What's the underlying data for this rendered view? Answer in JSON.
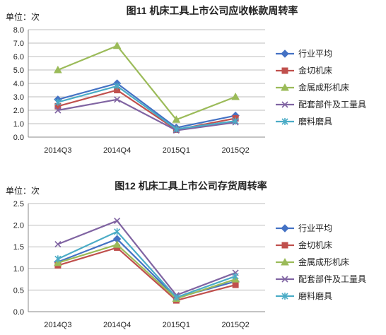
{
  "chart_data": [
    {
      "type": "line",
      "title": "图11 机床工具上市公司应收帐款周转率",
      "unit_label": "单位：次",
      "categories": [
        "2014Q3",
        "2014Q4",
        "2015Q1",
        "2015Q2"
      ],
      "ylim": [
        0,
        8
      ],
      "yticks": [
        "0.0",
        "1.0",
        "2.0",
        "3.0",
        "4.0",
        "5.0",
        "6.0",
        "7.0",
        "8.0"
      ],
      "grid": true,
      "legend_position": "right",
      "series": [
        {
          "name": "行业平均",
          "color": "#4472C4",
          "marker": "diamond",
          "values": [
            2.8,
            4.0,
            0.7,
            1.6
          ]
        },
        {
          "name": "金切机床",
          "color": "#C0504D",
          "marker": "square",
          "values": [
            2.3,
            3.5,
            0.55,
            1.4
          ]
        },
        {
          "name": "金属成形机床",
          "color": "#9BBB59",
          "marker": "triangle",
          "values": [
            5.0,
            6.8,
            1.3,
            3.0
          ]
        },
        {
          "name": "配套部件及工量具",
          "color": "#8064A2",
          "marker": "x",
          "values": [
            2.0,
            2.8,
            0.5,
            1.1
          ]
        },
        {
          "name": "磨料磨具",
          "color": "#4BACC6",
          "marker": "star",
          "values": [
            2.6,
            3.8,
            0.6,
            1.2
          ]
        }
      ]
    },
    {
      "type": "line",
      "title": "图12 机床工具上市公司存货周转率",
      "unit_label": "单位：次",
      "categories": [
        "2014Q3",
        "2014Q4",
        "2015Q1",
        "2015Q2"
      ],
      "ylim": [
        0,
        2.5
      ],
      "yticks": [
        "0.0",
        "0.5",
        "1.0",
        "1.5",
        "2.0",
        "2.5"
      ],
      "grid": true,
      "legend_position": "right",
      "series": [
        {
          "name": "行业平均",
          "color": "#4472C4",
          "marker": "diamond",
          "values": [
            1.15,
            1.68,
            0.32,
            0.7
          ]
        },
        {
          "name": "金切机床",
          "color": "#C0504D",
          "marker": "square",
          "values": [
            1.07,
            1.48,
            0.26,
            0.62
          ]
        },
        {
          "name": "金属成形机床",
          "color": "#9BBB59",
          "marker": "triangle",
          "values": [
            1.13,
            1.55,
            0.3,
            0.75
          ]
        },
        {
          "name": "配套部件及工量具",
          "color": "#8064A2",
          "marker": "x",
          "values": [
            1.56,
            2.1,
            0.38,
            0.9
          ]
        },
        {
          "name": "磨料磨具",
          "color": "#4BACC6",
          "marker": "star",
          "values": [
            1.22,
            1.85,
            0.33,
            0.82
          ]
        }
      ]
    }
  ]
}
